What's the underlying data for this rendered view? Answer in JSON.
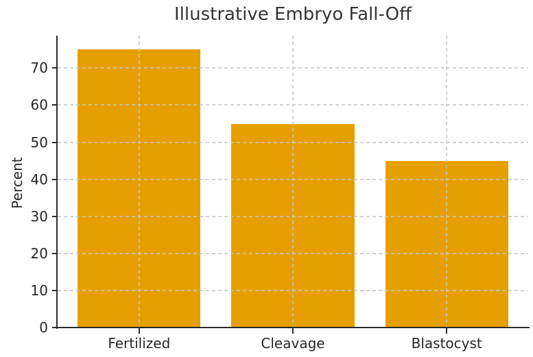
{
  "chart_data": {
    "type": "bar",
    "title": "Illustrative Embryo Fall-Off",
    "xlabel": "",
    "ylabel": "Percent",
    "categories": [
      "Fertilized",
      "Cleavage",
      "Blastocyst"
    ],
    "values": [
      75,
      55,
      45
    ],
    "yticks": [
      0,
      10,
      20,
      30,
      40,
      50,
      60,
      70
    ],
    "ylim": [
      0,
      78.75
    ],
    "xlim": [
      -0.53,
      2.53
    ],
    "bar_width_fraction": 0.8,
    "bar_color": "#E69F00",
    "grid_color": "#cccccc",
    "grid_style": "dashed; horizontal at every 10 plus vertical at category centers; drawn faintly over bars",
    "axis_color": "#2b2b2b",
    "text_color": "#262626",
    "background_color": "#ffffff",
    "legend": "none"
  }
}
